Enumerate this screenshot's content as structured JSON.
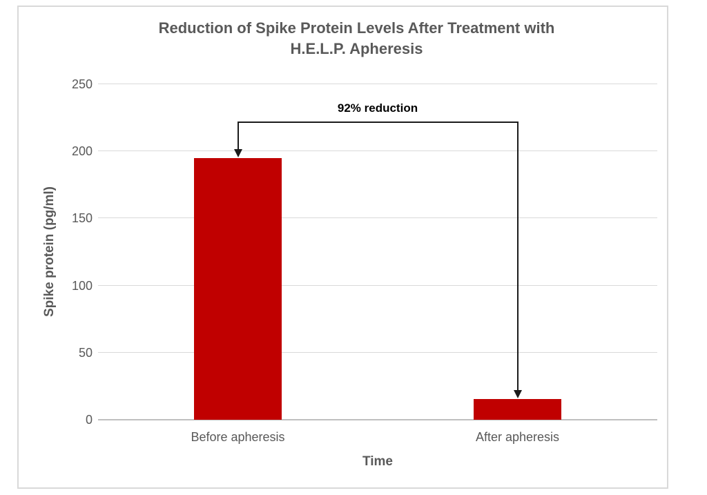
{
  "chart_data": {
    "type": "bar",
    "title": "Reduction of Spike Protein Levels After Treatment with H.E.L.P. Apheresis",
    "categories": [
      "Before apheresis",
      "After apheresis"
    ],
    "values": [
      195,
      15.6
    ],
    "xlabel": "Time",
    "ylabel": "Spike protein (pg/ml)",
    "ylim": [
      0,
      250
    ],
    "yticks": [
      0,
      50,
      100,
      150,
      200,
      250
    ],
    "grid": true,
    "legend_position": "none",
    "annotation": {
      "label": "92% reduction",
      "bracket_y": 222
    }
  },
  "colors": {
    "bar": "#c00000",
    "title_text": "#595959",
    "axis_text": "#595959",
    "gridline": "#d9d9d9",
    "axis_line": "#bfbfbf",
    "arrow": "#1a1a1a",
    "frame_border": "#d9d9d9",
    "background": "#ffffff"
  }
}
